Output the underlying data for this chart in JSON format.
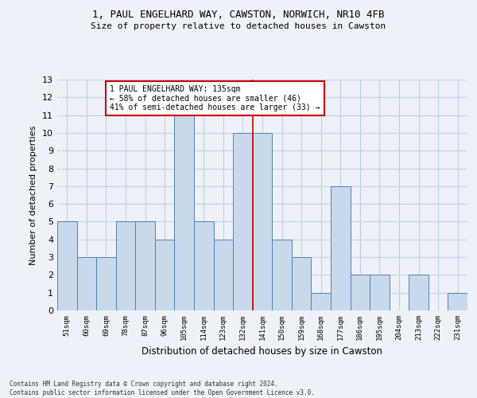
{
  "title1": "1, PAUL ENGELHARD WAY, CAWSTON, NORWICH, NR10 4FB",
  "title2": "Size of property relative to detached houses in Cawston",
  "xlabel": "Distribution of detached houses by size in Cawston",
  "ylabel": "Number of detached properties",
  "categories": [
    "51sqm",
    "60sqm",
    "69sqm",
    "78sqm",
    "87sqm",
    "96sqm",
    "105sqm",
    "114sqm",
    "123sqm",
    "132sqm",
    "141sqm",
    "150sqm",
    "159sqm",
    "168sqm",
    "177sqm",
    "186sqm",
    "195sqm",
    "204sqm",
    "213sqm",
    "222sqm",
    "231sqm"
  ],
  "values": [
    5,
    3,
    3,
    5,
    5,
    4,
    11,
    5,
    4,
    10,
    10,
    4,
    3,
    1,
    7,
    2,
    2,
    0,
    2,
    0,
    1
  ],
  "bar_color": "#c9d9ec",
  "bar_edge_color": "#5080b0",
  "grid_color": "#c0cfe0",
  "background_color": "#eef2f8",
  "vline_x": 9.5,
  "vline_color": "#cc0000",
  "annotation_text": "1 PAUL ENGELHARD WAY: 135sqm\n← 58% of detached houses are smaller (46)\n41% of semi-detached houses are larger (33) →",
  "ylim": [
    0,
    13
  ],
  "yticks": [
    0,
    1,
    2,
    3,
    4,
    5,
    6,
    7,
    8,
    9,
    10,
    11,
    12,
    13
  ],
  "footer_line1": "Contains HM Land Registry data © Crown copyright and database right 2024.",
  "footer_line2": "Contains public sector information licensed under the Open Government Licence v3.0."
}
